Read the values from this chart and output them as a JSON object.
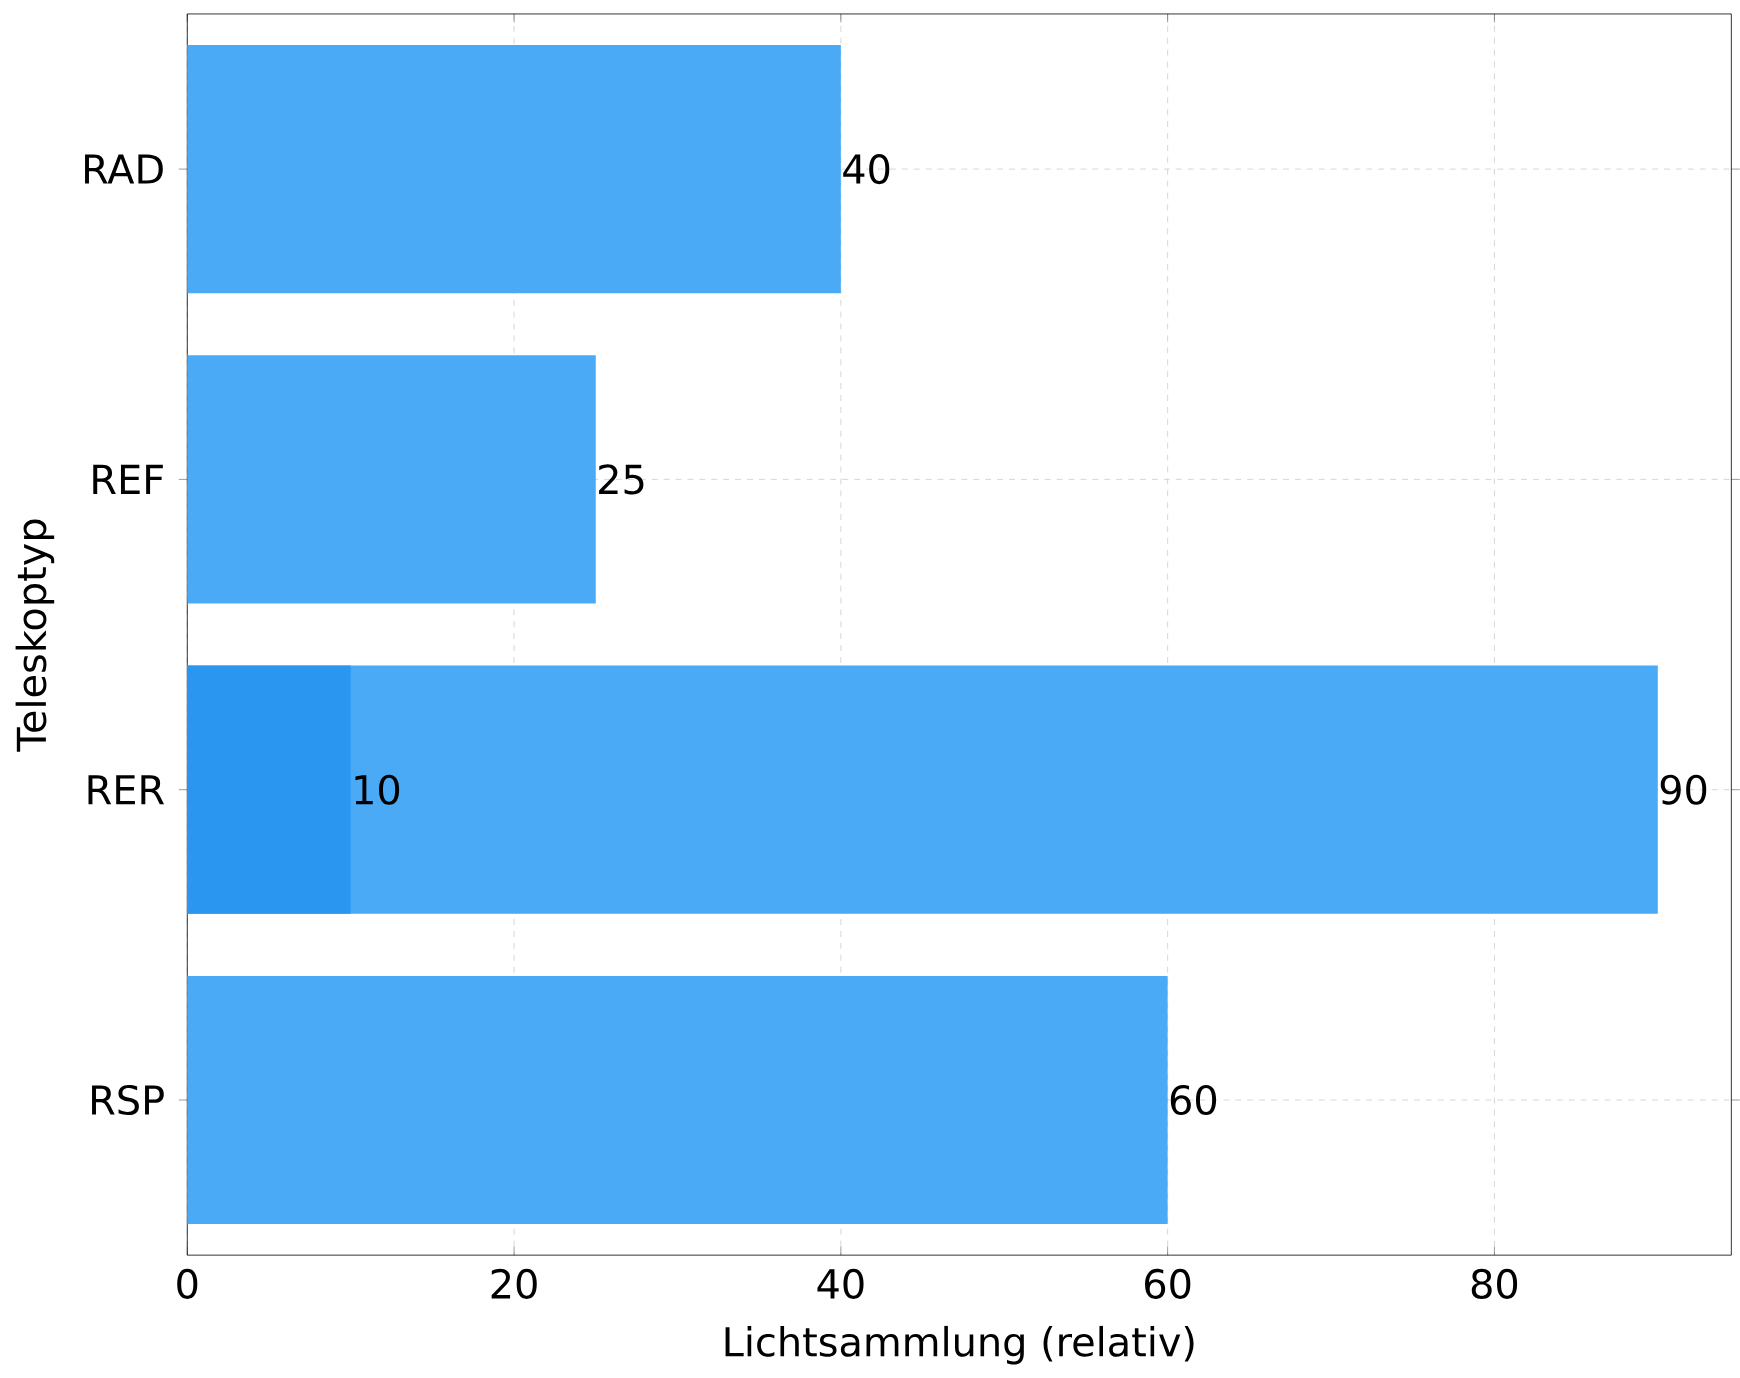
{
  "chart_data": {
    "type": "bar",
    "orientation": "horizontal",
    "xlabel": "Lichtsammlung (relativ)",
    "ylabel": "Teleskoptyp",
    "categories": [
      "RAD",
      "REF",
      "RER",
      "RSP"
    ],
    "series": [
      {
        "color": "#4aaaf5",
        "values": [
          40,
          25,
          90,
          60
        ]
      },
      {
        "color": "#2a96f0",
        "values": [
          null,
          null,
          10,
          null
        ]
      }
    ],
    "xlim": [
      0,
      94.5
    ],
    "xticks": [
      0,
      20,
      40,
      60,
      80
    ],
    "grid": true,
    "data_labels": true
  }
}
